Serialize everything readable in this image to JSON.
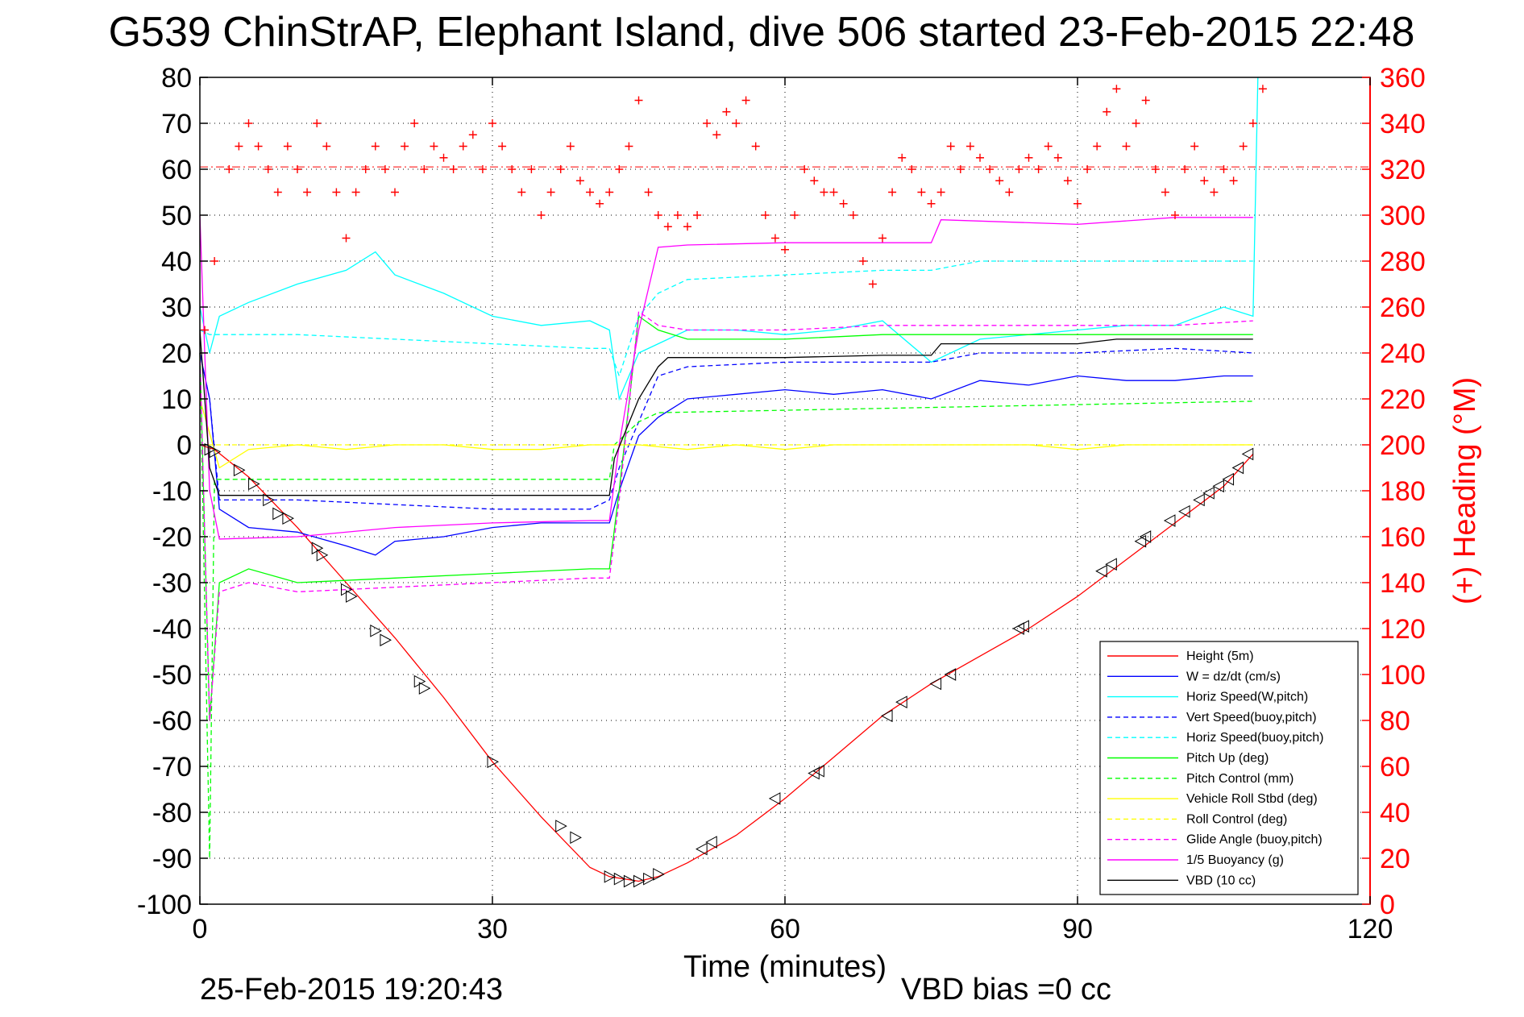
{
  "title": "G539 ChinStrAP, Elephant Island, dive 506 started 23-Feb-2015 22:48",
  "footer_left": "25-Feb-2015 19:20:43",
  "footer_right": "VBD bias =0 cc",
  "colors": {
    "axes": "#000000",
    "right_axis": "#ff0000",
    "grid": "#000000"
  },
  "chart_data": {
    "type": "line",
    "xlabel": "Time (minutes)",
    "ylabel": "",
    "ylabel_right": "(+) Heading (°M)",
    "xlim": [
      0,
      120
    ],
    "ylim": [
      -100,
      80
    ],
    "ylim_right": [
      0,
      360
    ],
    "x_ticks": [
      0,
      30,
      60,
      90,
      120
    ],
    "y_ticks": [
      80,
      70,
      60,
      50,
      40,
      30,
      20,
      10,
      0,
      -10,
      -20,
      -30,
      -40,
      -50,
      -60,
      -70,
      -80,
      -90,
      -100
    ],
    "y_ticks_right": [
      360,
      340,
      320,
      300,
      280,
      260,
      240,
      220,
      200,
      180,
      160,
      140,
      120,
      100,
      80,
      60,
      40,
      20,
      0
    ],
    "grid": true,
    "legend_position": "bottom-right",
    "series": [
      {
        "name": "Height (5m)",
        "color": "#ff0000",
        "dash": "solid",
        "x": [
          0,
          1.5,
          5,
          10,
          15,
          20,
          25,
          30,
          35,
          40,
          42,
          45,
          47,
          50,
          55,
          60,
          65,
          70,
          75,
          80,
          85,
          90,
          95,
          100,
          105,
          108
        ],
        "y": [
          0,
          -1,
          -7,
          -18,
          -30,
          -42,
          -55,
          -69,
          -81,
          -92,
          -94,
          -95,
          -94,
          -91,
          -85,
          -77,
          -68,
          -59,
          -52,
          -46,
          -40,
          -33,
          -25,
          -17,
          -9,
          -2
        ]
      },
      {
        "name": "W = dz/dt (cm/s)",
        "color": "#0000ff",
        "dash": "solid",
        "x": [
          0,
          1,
          2,
          5,
          10,
          15,
          18,
          20,
          25,
          30,
          35,
          40,
          42,
          43,
          45,
          47,
          50,
          55,
          60,
          65,
          70,
          75,
          80,
          85,
          90,
          95,
          100,
          105,
          108
        ],
        "y": [
          20,
          10,
          -14,
          -18,
          -19,
          -22,
          -24,
          -21,
          -20,
          -18,
          -17,
          -17,
          -17,
          -10,
          2,
          6,
          10,
          11,
          12,
          11,
          12,
          10,
          14,
          13,
          15,
          14,
          14,
          15,
          15
        ]
      },
      {
        "name": "Horiz Speed(W,pitch)",
        "color": "#00ffff",
        "dash": "solid",
        "x": [
          0,
          1,
          2,
          5,
          10,
          15,
          18,
          20,
          25,
          30,
          35,
          40,
          42,
          43,
          45,
          47,
          50,
          55,
          60,
          65,
          70,
          75,
          80,
          85,
          90,
          95,
          100,
          105,
          108,
          108.5
        ],
        "y": [
          30,
          20,
          28,
          31,
          35,
          38,
          42,
          37,
          33,
          28,
          26,
          27,
          25,
          10,
          20,
          22,
          25,
          25,
          24,
          25,
          27,
          18,
          23,
          24,
          25,
          26,
          26,
          30,
          28,
          80
        ]
      },
      {
        "name": "Vert Speed(buoy,pitch)",
        "color": "#0000ff",
        "dash": "dashed",
        "x": [
          0,
          1,
          2,
          10,
          20,
          30,
          40,
          42,
          43,
          45,
          47,
          50,
          60,
          70,
          75,
          80,
          90,
          100,
          108
        ],
        "y": [
          20,
          10,
          -12,
          -12,
          -13,
          -14,
          -14,
          -12,
          -5,
          5,
          15,
          17,
          18,
          18,
          18,
          20,
          20,
          21,
          20
        ]
      },
      {
        "name": "Horiz Speed(buoy,pitch)",
        "color": "#00ffff",
        "dash": "dashed",
        "x": [
          0,
          1,
          2,
          10,
          20,
          30,
          40,
          42,
          43,
          45,
          47,
          50,
          60,
          70,
          75,
          80,
          90,
          100,
          108
        ],
        "y": [
          25,
          24,
          24,
          24,
          23,
          22,
          21,
          21,
          15,
          28,
          33,
          36,
          37,
          38,
          38,
          40,
          40,
          40,
          40
        ]
      },
      {
        "name": "Pitch Up (deg)",
        "color": "#00ff00",
        "dash": "solid",
        "x": [
          0,
          1,
          2,
          5,
          10,
          20,
          30,
          40,
          42,
          43,
          45,
          47,
          50,
          60,
          70,
          80,
          90,
          100,
          108
        ],
        "y": [
          20,
          -60,
          -30,
          -27,
          -30,
          -29,
          -28,
          -27,
          -27,
          -10,
          28,
          25,
          23,
          23,
          24,
          24,
          24,
          24,
          24
        ]
      },
      {
        "name": "Pitch Control (mm)",
        "color": "#00ff00",
        "dash": "dashed",
        "x": [
          0,
          1,
          1.5,
          2,
          42,
          42.5,
          45,
          47,
          108
        ],
        "y": [
          20,
          -90,
          -7.5,
          -7.5,
          -7.5,
          0,
          5,
          7,
          9.5
        ]
      },
      {
        "name": "Vehicle Roll Stbd (deg)",
        "color": "#ffff00",
        "dash": "solid",
        "x": [
          0,
          2,
          5,
          10,
          15,
          20,
          25,
          30,
          35,
          40,
          45,
          50,
          55,
          60,
          65,
          70,
          75,
          80,
          85,
          90,
          95,
          100,
          105,
          108
        ],
        "y": [
          10,
          -5,
          -1,
          0,
          -1,
          0,
          0,
          -1,
          -1,
          0,
          0,
          -1,
          0,
          -1,
          0,
          0,
          0,
          0,
          0,
          -1,
          0,
          0,
          0,
          0
        ]
      },
      {
        "name": "Roll Control (deg)",
        "color": "#ffff00",
        "dash": "dashed",
        "x": [
          0,
          5,
          10,
          20,
          30,
          40,
          50,
          60,
          70,
          80,
          90,
          100,
          108
        ],
        "y": [
          0,
          0,
          0,
          0,
          0,
          0,
          0,
          0,
          0,
          0,
          0,
          0,
          0
        ]
      },
      {
        "name": "Glide Angle (buoy,pitch)",
        "color": "#ff00ff",
        "dash": "dashed",
        "x": [
          0,
          1,
          2,
          5,
          10,
          20,
          30,
          40,
          42,
          43,
          45,
          47,
          50,
          60,
          70,
          80,
          90,
          100,
          108
        ],
        "y": [
          20,
          -60,
          -32,
          -30,
          -32,
          -31,
          -30,
          -29,
          -29,
          -12,
          29,
          26,
          25,
          25,
          26,
          26,
          26,
          26,
          27
        ]
      },
      {
        "name": "1/5 Buoyancy (g)",
        "color": "#ff00ff",
        "dash": "solid",
        "x": [
          0,
          1,
          2,
          10,
          20,
          30,
          40,
          42,
          43,
          45,
          47,
          50,
          60,
          70,
          75,
          76,
          90,
          100,
          108
        ],
        "y": [
          50,
          -10,
          -20.5,
          -20,
          -18,
          -17,
          -16.5,
          -16.5,
          0,
          25,
          43,
          43.5,
          44,
          44,
          44,
          49,
          48,
          49.5,
          49.5
        ]
      },
      {
        "name": "VBD (10 cc)",
        "color": "#000000",
        "dash": "solid",
        "x": [
          0,
          1,
          2,
          42,
          42.5,
          45,
          47,
          48,
          50,
          60,
          70,
          75,
          76,
          80,
          90,
          94,
          100,
          108
        ],
        "y": [
          25,
          -5,
          -11,
          -11,
          -3,
          10,
          17,
          19,
          19,
          19,
          19.5,
          19.5,
          22,
          22,
          22,
          23,
          23,
          23
        ]
      },
      {
        "name": "Heading (+)",
        "color": "#ff0000",
        "axis": "right",
        "marker": "+",
        "x": [
          0.5,
          1.5,
          3,
          4,
          5,
          6,
          7,
          8,
          9,
          10,
          11,
          12,
          13,
          14,
          15,
          16,
          17,
          18,
          19,
          20,
          21,
          22,
          23,
          24,
          25,
          26,
          27,
          28,
          29,
          30,
          31,
          32,
          33,
          34,
          35,
          36,
          37,
          38,
          39,
          40,
          41,
          42,
          43,
          44,
          45,
          46,
          47,
          48,
          49,
          50,
          51,
          52,
          53,
          54,
          55,
          56,
          57,
          58,
          59,
          60,
          61,
          62,
          63,
          64,
          65,
          66,
          67,
          68,
          69,
          70,
          71,
          72,
          73,
          74,
          75,
          76,
          77,
          78,
          79,
          80,
          81,
          82,
          83,
          84,
          85,
          86,
          87,
          88,
          89,
          90,
          91,
          92,
          93,
          94,
          95,
          96,
          97,
          98,
          99,
          100,
          101,
          102,
          103,
          104,
          105,
          106,
          107,
          108,
          109
        ],
        "y": [
          250,
          280,
          320,
          330,
          340,
          330,
          320,
          310,
          330,
          320,
          310,
          340,
          330,
          310,
          290,
          310,
          320,
          330,
          320,
          310,
          330,
          340,
          320,
          330,
          325,
          320,
          330,
          335,
          320,
          340,
          330,
          320,
          310,
          320,
          300,
          310,
          320,
          330,
          315,
          310,
          305,
          310,
          320,
          330,
          350,
          310,
          300,
          295,
          300,
          295,
          300,
          340,
          335,
          345,
          340,
          350,
          330,
          300,
          290,
          285,
          300,
          320,
          315,
          310,
          310,
          305,
          300,
          280,
          270,
          290,
          310,
          325,
          320,
          310,
          305,
          310,
          330,
          320,
          330,
          325,
          320,
          315,
          310,
          320,
          325,
          320,
          330,
          325,
          315,
          305,
          320,
          330,
          345,
          355,
          330,
          340,
          350,
          320,
          310,
          300,
          320,
          330,
          315,
          310,
          320,
          315,
          330,
          340,
          355
        ]
      }
    ],
    "ref_line_right": 321,
    "triangle_markers": {
      "x": [
        1,
        1.5,
        4,
        5.5,
        7,
        8,
        9,
        12,
        12.5,
        15,
        15.5,
        18,
        19,
        22.5,
        23,
        30,
        37,
        38.5,
        42,
        43,
        44,
        45,
        46,
        47,
        51.5,
        52.5,
        59,
        63,
        63.5,
        70.5,
        72,
        75.5,
        77,
        84,
        84.5,
        92.5,
        93.5,
        96.5,
        97,
        99.5,
        101,
        102.5,
        103.5,
        104.5,
        105.5,
        106.5,
        107.5
      ],
      "y": [
        -1,
        -1.5,
        -5.5,
        -8.5,
        -12,
        -15,
        -16,
        -22.5,
        -24,
        -31.5,
        -33,
        -40.5,
        -42.5,
        -51.5,
        -53,
        -69,
        -83,
        -85.5,
        -94,
        -94.5,
        -95,
        -95,
        -94.5,
        -93.5,
        -88,
        -86.5,
        -77,
        -71.5,
        -71,
        -59,
        -56,
        -52,
        -50,
        -40,
        -39.5,
        -27.5,
        -26,
        -21,
        -20,
        -16.5,
        -14.5,
        -12,
        -10.5,
        -9,
        -7.5,
        -5,
        -2
      ]
    }
  },
  "legend": [
    {
      "label": "Height (5m)",
      "color": "#ff0000",
      "dash": "solid"
    },
    {
      "label": "W = dz/dt (cm/s)",
      "color": "#0000ff",
      "dash": "solid"
    },
    {
      "label": "Horiz Speed(W,pitch)",
      "color": "#00ffff",
      "dash": "solid"
    },
    {
      "label": "Vert Speed(buoy,pitch)",
      "color": "#0000ff",
      "dash": "dashed"
    },
    {
      "label": "Horiz Speed(buoy,pitch)",
      "color": "#00ffff",
      "dash": "dashed"
    },
    {
      "label": "Pitch Up (deg)",
      "color": "#00ff00",
      "dash": "solid"
    },
    {
      "label": "Pitch Control (mm)",
      "color": "#00ff00",
      "dash": "dashed"
    },
    {
      "label": "Vehicle Roll Stbd (deg)",
      "color": "#ffff00",
      "dash": "solid"
    },
    {
      "label": "Roll Control (deg)",
      "color": "#ffff00",
      "dash": "dashed"
    },
    {
      "label": "Glide Angle (buoy,pitch)",
      "color": "#ff00ff",
      "dash": "dashed"
    },
    {
      "label": "1/5 Buoyancy (g)",
      "color": "#ff00ff",
      "dash": "solid"
    },
    {
      "label": "VBD (10 cc)",
      "color": "#000000",
      "dash": "solid"
    }
  ]
}
